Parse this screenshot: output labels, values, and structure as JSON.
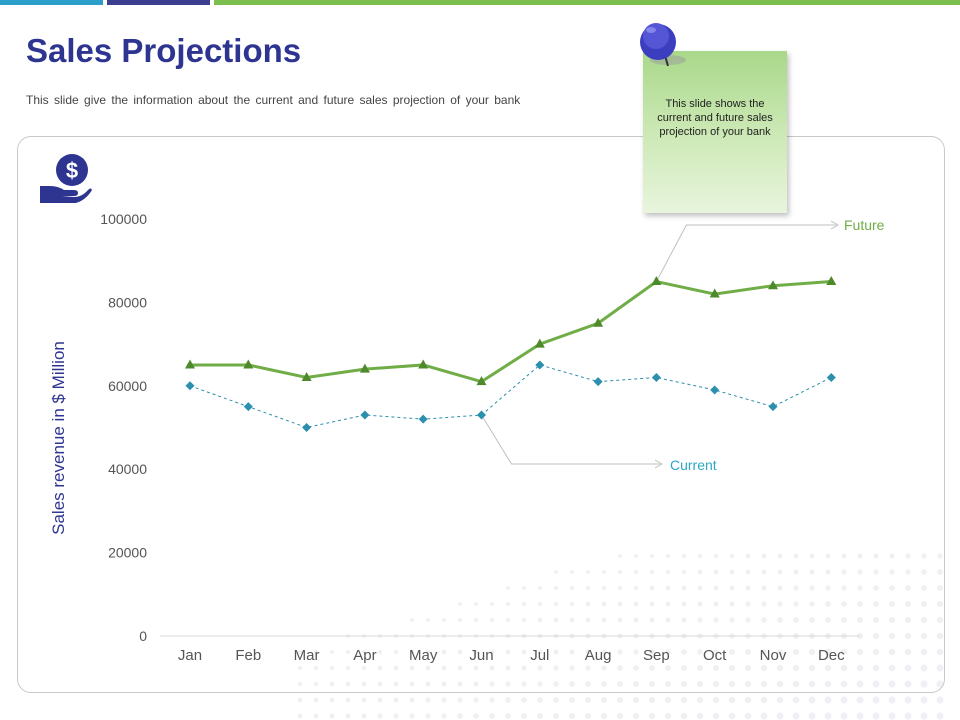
{
  "slide": {
    "title": "Sales Projections",
    "subtitle": "This slide give the information about the current and future sales projection of your bank"
  },
  "note": {
    "text": "This slide shows the current and future sales projection of your bank"
  },
  "colors": {
    "title": "#2e3591",
    "future": "#70ad47",
    "current": "#2b8fad",
    "current_label": "#2ea8c4",
    "axis_text": "#555555"
  },
  "chart_data": {
    "type": "line",
    "title": "",
    "xlabel": "",
    "ylabel": "Sales revenue in $ Million",
    "ylim": [
      0,
      100000
    ],
    "yticks": [
      0,
      20000,
      40000,
      60000,
      80000,
      100000
    ],
    "categories": [
      "Jan",
      "Feb",
      "Mar",
      "Apr",
      "May",
      "Jun",
      "Jul",
      "Aug",
      "Sep",
      "Oct",
      "Nov",
      "Dec"
    ],
    "series": [
      {
        "name": "Future",
        "values": [
          65000,
          65000,
          62000,
          64000,
          65000,
          61000,
          70000,
          75000,
          85000,
          82000,
          84000,
          85000
        ]
      },
      {
        "name": "Current",
        "values": [
          60000,
          55000,
          50000,
          53000,
          52000,
          53000,
          65000,
          61000,
          62000,
          59000,
          55000,
          62000
        ]
      }
    ],
    "annotations": [
      {
        "text": "Future",
        "series": "Future",
        "anchor_index": 8
      },
      {
        "text": "Current",
        "series": "Current",
        "anchor_index": 5
      }
    ]
  }
}
